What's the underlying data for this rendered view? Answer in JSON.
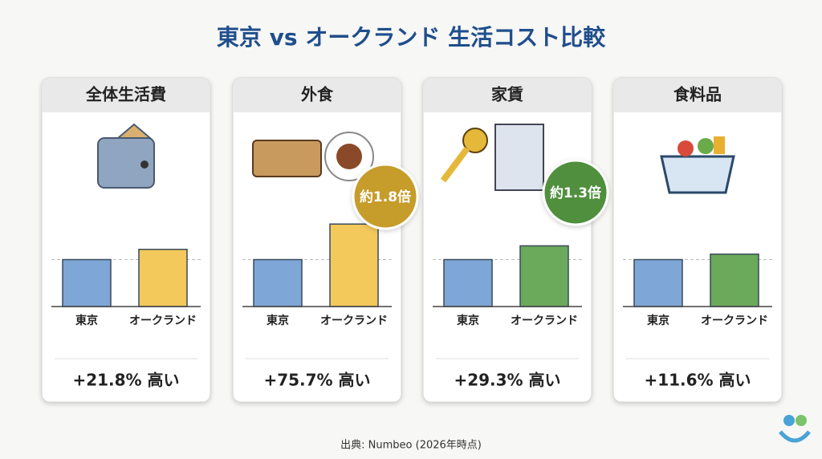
{
  "title": "東京 vs オークランド 生活コスト比較",
  "source": "出典: Numbeo (2026年時点)",
  "chart_data": [
    {
      "type": "bar",
      "title": "全体生活費",
      "categories": [
        "東京",
        "オークランド"
      ],
      "values": [
        100,
        121.8
      ],
      "colors": [
        "#7ea6d6",
        "#f3c95b"
      ],
      "ylim": [
        0,
        200
      ],
      "annotation": "+21.8% 高い"
    },
    {
      "type": "bar",
      "title": "外食",
      "categories": [
        "東京",
        "オークランド"
      ],
      "values": [
        100,
        175.7
      ],
      "colors": [
        "#7ea6d6",
        "#f3c95b"
      ],
      "ylim": [
        0,
        200
      ],
      "annotation": "+75.7% 高い",
      "badge": "約1.8倍",
      "badge_color": "#c69c2a"
    },
    {
      "type": "bar",
      "title": "家賃",
      "categories": [
        "東京",
        "オークランド"
      ],
      "values": [
        100,
        129.3
      ],
      "colors": [
        "#7ea6d6",
        "#6aaa5a"
      ],
      "ylim": [
        0,
        200
      ],
      "annotation": "+29.3% 高い",
      "badge": "約1.3倍",
      "badge_color": "#4f8f3c"
    },
    {
      "type": "bar",
      "title": "食料品",
      "categories": [
        "東京",
        "オークランド"
      ],
      "values": [
        100,
        111.6
      ],
      "colors": [
        "#7ea6d6",
        "#6aaa5a"
      ],
      "ylim": [
        0,
        200
      ],
      "annotation": "+11.6% 高い"
    }
  ]
}
